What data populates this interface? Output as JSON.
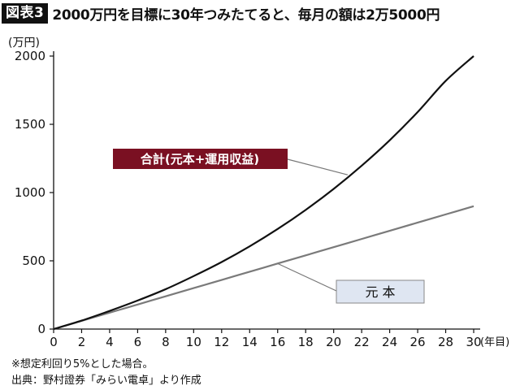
{
  "header": {
    "figure_label": "図表3",
    "title": "2000万円を目標に30年つみたてると、毎月の額は2万5000円"
  },
  "footnotes": {
    "note": "※想定利回り5%とした場合。",
    "source": "出典：野村證券「みらい電卓」より作成"
  },
  "chart_data": {
    "type": "line",
    "title": "2000万円を目標に30年つみたてると、毎月の額は2万5000円",
    "ylabel": "(万円)",
    "xlabel": "(年目)",
    "xlim": [
      0,
      30
    ],
    "ylim": [
      0,
      2000
    ],
    "x_ticks": [
      0,
      2,
      4,
      6,
      8,
      10,
      12,
      14,
      16,
      18,
      20,
      22,
      24,
      26,
      28,
      30
    ],
    "y_ticks": [
      0,
      500,
      1000,
      1500,
      2000
    ],
    "grid": false,
    "x": [
      0,
      2,
      4,
      6,
      8,
      10,
      12,
      14,
      16,
      18,
      20,
      22,
      24,
      26,
      28,
      30
    ],
    "series": [
      {
        "name": "合計(元本+運用収益)",
        "color": "#111111",
        "label_bg": "#7a1022",
        "values": [
          0,
          62,
          133,
          209,
          292,
          388,
          491,
          606,
          733,
          873,
          1027,
          1197,
          1383,
          1590,
          1818,
          2000
        ]
      },
      {
        "name": "元 本",
        "color": "#7a7a7a",
        "label_bg": "#dfe6f2",
        "values": [
          0,
          60,
          120,
          180,
          240,
          300,
          360,
          420,
          480,
          540,
          600,
          660,
          720,
          780,
          840,
          900
        ]
      }
    ]
  }
}
